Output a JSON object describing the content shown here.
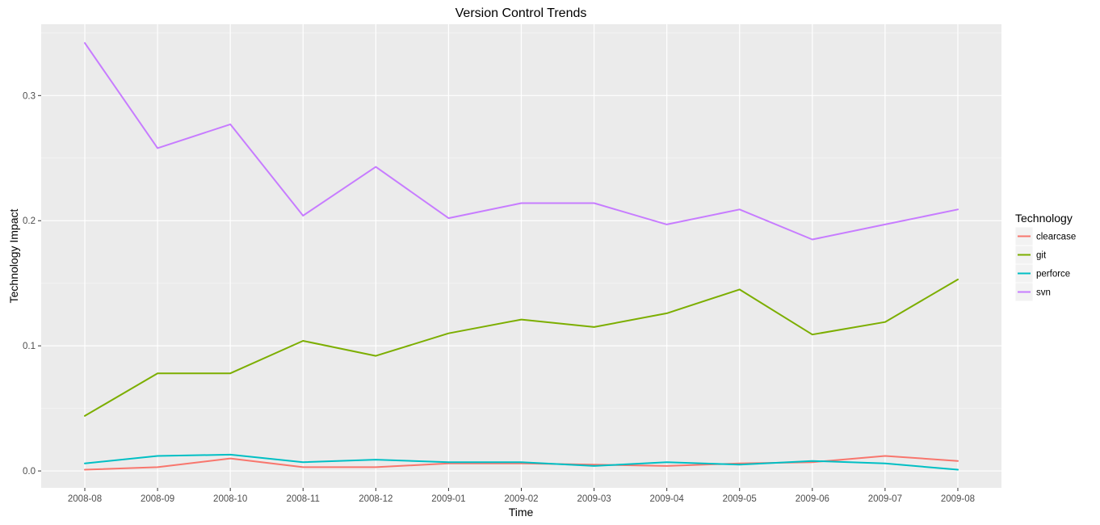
{
  "chart_data": {
    "type": "line",
    "title": "Version Control Trends",
    "xlabel": "Time",
    "ylabel": "Technology Impact",
    "categories": [
      "2008-08",
      "2008-09",
      "2008-10",
      "2008-11",
      "2008-12",
      "2009-01",
      "2009-02",
      "2009-03",
      "2009-04",
      "2009-05",
      "2009-06",
      "2009-07",
      "2009-08"
    ],
    "ylim": [
      -0.0135,
      0.357
    ],
    "yticks": [
      0.0,
      0.1,
      0.2,
      0.3
    ],
    "ytick_labels": [
      "0.0",
      "0.1",
      "0.2",
      "0.3"
    ],
    "grid": true,
    "legend": {
      "title": "Technology",
      "position": "right"
    },
    "series": [
      {
        "name": "clearcase",
        "color": "#F8766D",
        "values": [
          0.001,
          0.003,
          0.01,
          0.003,
          0.003,
          0.006,
          0.006,
          0.005,
          0.004,
          0.006,
          0.007,
          0.012,
          0.008
        ]
      },
      {
        "name": "git",
        "color": "#7CAE00",
        "values": [
          0.044,
          0.078,
          0.078,
          0.104,
          0.092,
          0.11,
          0.121,
          0.115,
          0.126,
          0.145,
          0.109,
          0.119,
          0.153
        ]
      },
      {
        "name": "perforce",
        "color": "#00BFC4",
        "values": [
          0.006,
          0.012,
          0.013,
          0.007,
          0.009,
          0.007,
          0.007,
          0.004,
          0.007,
          0.005,
          0.008,
          0.006,
          0.001
        ]
      },
      {
        "name": "svn",
        "color": "#C77CFF",
        "values": [
          0.342,
          0.258,
          0.277,
          0.204,
          0.243,
          0.202,
          0.214,
          0.214,
          0.197,
          0.209,
          0.185,
          0.197,
          0.209
        ]
      }
    ]
  }
}
